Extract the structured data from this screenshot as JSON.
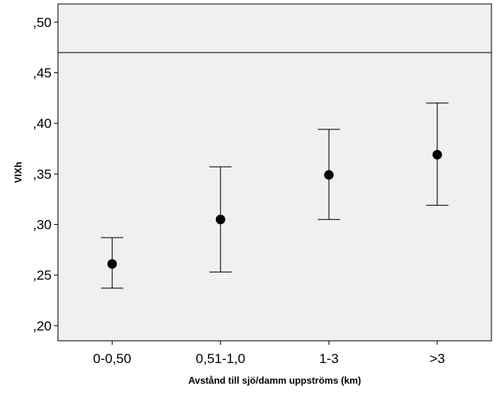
{
  "chart_data": {
    "type": "scatter",
    "subtype": "error-bar",
    "title": "",
    "xlabel": "Avstånd till sjö/damm uppströms (km)",
    "ylabel": "VIXh",
    "categories": [
      "0-0,50",
      "0,51-1,0",
      "1-3",
      ">3"
    ],
    "values": [
      0.261,
      0.305,
      0.349,
      0.369
    ],
    "error_low": [
      0.237,
      0.253,
      0.305,
      0.319
    ],
    "error_high": [
      0.287,
      0.357,
      0.394,
      0.42
    ],
    "reference_line": 0.47,
    "ylim": [
      0.185,
      0.518
    ],
    "yticks": [
      0.2,
      0.25,
      0.3,
      0.35,
      0.4,
      0.45,
      0.5
    ],
    "ytick_labels": [
      ",20",
      ",25",
      ",30",
      ",35",
      ",40",
      ",45",
      ",50"
    ],
    "grid": false,
    "colors": {
      "plot_background": "#f0f0f0",
      "marker": "#000000",
      "line": "#000000"
    }
  }
}
